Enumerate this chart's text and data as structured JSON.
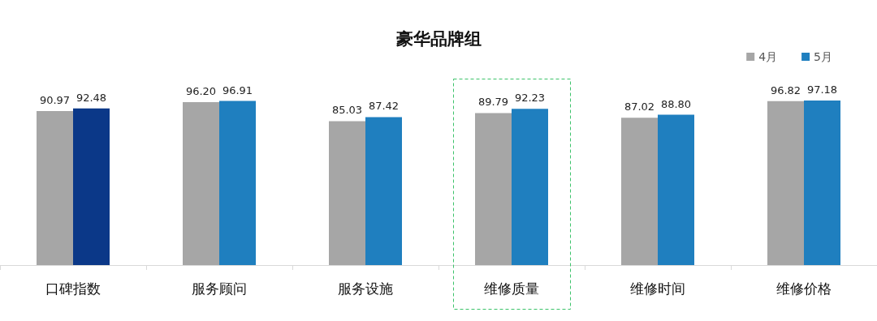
{
  "chart_data": {
    "type": "bar",
    "title": "豪华品牌组",
    "categories": [
      "口碑指数",
      "服务顾问",
      "服务设施",
      "维修质量",
      "维修时间",
      "维修价格"
    ],
    "series": [
      {
        "name": "4月",
        "color": "#a6a6a6",
        "values": [
          90.97,
          96.2,
          85.03,
          89.79,
          87.02,
          96.82
        ],
        "value_labels": [
          "90.97",
          "96.20",
          "85.03",
          "89.79",
          "87.02",
          "96.82"
        ]
      },
      {
        "name": "5月",
        "color": "#1f7fbf",
        "colors": [
          "#0b3888",
          "#1f7fbf",
          "#1f7fbf",
          "#1f7fbf",
          "#1f7fbf",
          "#1f7fbf"
        ],
        "values": [
          92.48,
          96.91,
          87.42,
          92.23,
          88.8,
          97.18
        ],
        "value_labels": [
          "92.48",
          "96.91",
          "87.42",
          "92.23",
          "88.80",
          "97.18"
        ]
      }
    ],
    "legend": "top right",
    "grid": false,
    "tick_labels": "x"
  }
}
